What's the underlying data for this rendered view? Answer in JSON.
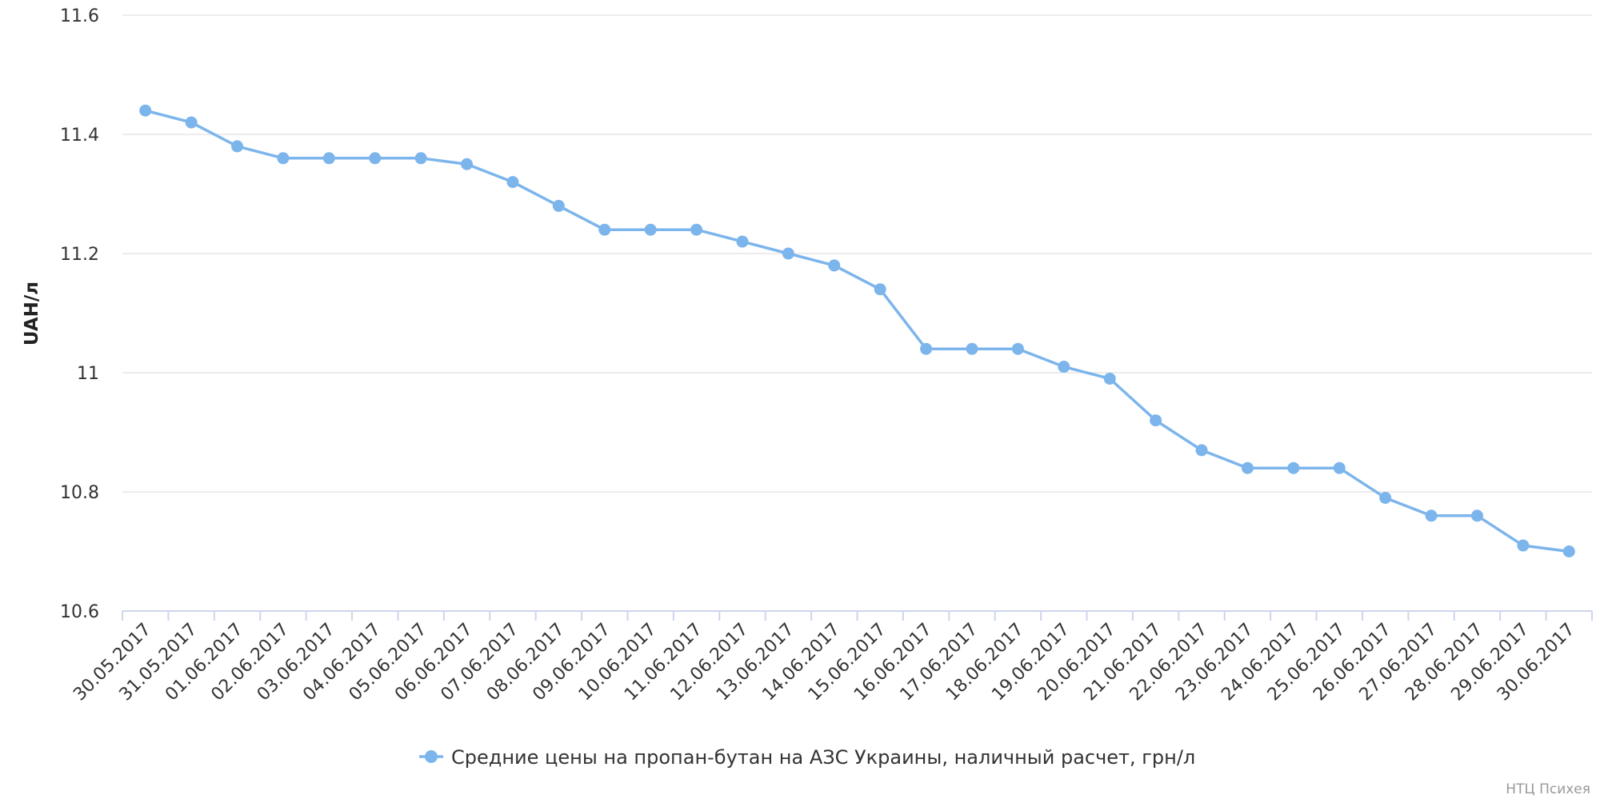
{
  "chart_data": {
    "type": "line",
    "ylabel": "UAH/л",
    "ylim": [
      10.6,
      11.6
    ],
    "yticks": [
      "10.6",
      "10.8",
      "11",
      "11.2",
      "11.4",
      "11.6"
    ],
    "grid": true,
    "legend_position": "bottom-center",
    "categories": [
      "30.05.2017",
      "31.05.2017",
      "01.06.2017",
      "02.06.2017",
      "03.06.2017",
      "04.06.2017",
      "05.06.2017",
      "06.06.2017",
      "07.06.2017",
      "08.06.2017",
      "09.06.2017",
      "10.06.2017",
      "11.06.2017",
      "12.06.2017",
      "13.06.2017",
      "14.06.2017",
      "15.06.2017",
      "16.06.2017",
      "17.06.2017",
      "18.06.2017",
      "19.06.2017",
      "20.06.2017",
      "21.06.2017",
      "22.06.2017",
      "23.06.2017",
      "24.06.2017",
      "25.06.2017",
      "26.06.2017",
      "27.06.2017",
      "28.06.2017",
      "29.06.2017",
      "30.06.2017"
    ],
    "series": [
      {
        "name": "Средние цены на пропан-бутан на АЗС Украины, наличный расчет, грн/л",
        "color": "#7cb5ec",
        "values": [
          11.44,
          11.42,
          11.38,
          11.36,
          11.36,
          11.36,
          11.36,
          11.35,
          11.32,
          11.28,
          11.24,
          11.24,
          11.24,
          11.22,
          11.2,
          11.18,
          11.14,
          11.04,
          11.04,
          11.04,
          11.01,
          10.99,
          10.92,
          10.87,
          10.84,
          10.84,
          10.84,
          10.79,
          10.76,
          10.76,
          10.71,
          10.7
        ]
      }
    ]
  },
  "credits": "НТЦ Психея"
}
